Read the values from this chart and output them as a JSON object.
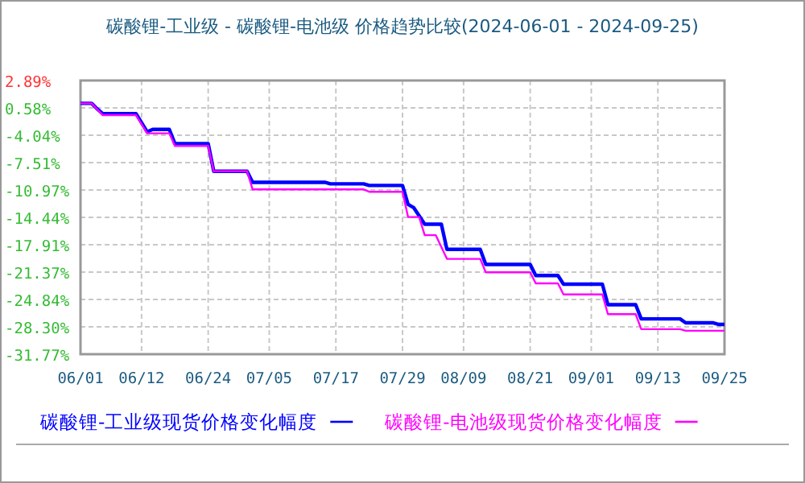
{
  "chart_data": {
    "type": "line",
    "title": "碳酸锂-工业级 - 碳酸锂-电池级 价格趋势比较(2024-06-01 - 2024-09-25)",
    "series": [
      {
        "name": "碳酸锂-工业级现货价格变化幅度",
        "color": "#0000ff",
        "x": [
          "2024-06-01",
          "2024-06-03",
          "2024-06-04",
          "2024-06-05",
          "2024-06-11",
          "2024-06-13",
          "2024-06-14",
          "2024-06-17",
          "2024-06-18",
          "2024-06-24",
          "2024-06-25",
          "2024-07-01",
          "2024-07-02",
          "2024-07-15",
          "2024-07-16",
          "2024-07-22",
          "2024-07-23",
          "2024-07-29",
          "2024-07-30",
          "2024-07-31",
          "2024-08-02",
          "2024-08-05",
          "2024-08-06",
          "2024-08-12",
          "2024-08-13",
          "2024-08-21",
          "2024-08-22",
          "2024-08-26",
          "2024-08-27",
          "2024-09-03",
          "2024-09-04",
          "2024-09-09",
          "2024-09-10",
          "2024-09-17",
          "2024-09-18",
          "2024-09-23",
          "2024-09-24",
          "2024-09-25"
        ],
        "values": [
          0,
          0,
          -0.7,
          -1.3,
          -1.3,
          -3.6,
          -3.3,
          -3.3,
          -5.1,
          -5.1,
          -8.6,
          -8.6,
          -10.0,
          -10.0,
          -10.2,
          -10.2,
          -10.4,
          -10.4,
          -12.8,
          -13.2,
          -15.3,
          -15.3,
          -18.5,
          -18.5,
          -20.4,
          -20.4,
          -21.8,
          -21.8,
          -22.9,
          -22.9,
          -25.5,
          -25.5,
          -27.3,
          -27.3,
          -27.8,
          -27.8,
          -28.0,
          -28.0
        ]
      },
      {
        "name": "碳酸锂-电池级现货价格变化幅度",
        "color": "#ff00ff",
        "x": [
          "2024-06-01",
          "2024-06-03",
          "2024-06-05",
          "2024-06-11",
          "2024-06-13",
          "2024-06-17",
          "2024-06-18",
          "2024-06-24",
          "2024-06-25",
          "2024-07-01",
          "2024-07-02",
          "2024-07-22",
          "2024-07-23",
          "2024-07-29",
          "2024-07-30",
          "2024-08-01",
          "2024-08-02",
          "2024-08-04",
          "2024-08-06",
          "2024-08-12",
          "2024-08-13",
          "2024-08-21",
          "2024-08-22",
          "2024-08-26",
          "2024-08-27",
          "2024-09-03",
          "2024-09-04",
          "2024-09-09",
          "2024-09-10",
          "2024-09-17",
          "2024-09-18",
          "2024-09-25"
        ],
        "values": [
          0,
          0,
          -1.5,
          -1.5,
          -3.8,
          -3.8,
          -5.4,
          -5.4,
          -8.6,
          -8.6,
          -10.9,
          -10.9,
          -11.2,
          -11.2,
          -14.4,
          -14.4,
          -16.7,
          -16.7,
          -19.7,
          -19.7,
          -21.4,
          -21.4,
          -22.8,
          -22.8,
          -24.2,
          -24.2,
          -26.7,
          -26.7,
          -28.6,
          -28.6,
          -28.8,
          -28.8
        ]
      }
    ],
    "xlim": [
      "2024-06-01",
      "2024-09-25"
    ],
    "xticks": [
      {
        "value": "2024-06-01",
        "label": "06/01"
      },
      {
        "value": "2024-06-12",
        "label": "06/12"
      },
      {
        "value": "2024-06-24",
        "label": "06/24"
      },
      {
        "value": "2024-07-05",
        "label": "07/05"
      },
      {
        "value": "2024-07-17",
        "label": "07/17"
      },
      {
        "value": "2024-07-29",
        "label": "07/29"
      },
      {
        "value": "2024-08-09",
        "label": "08/09"
      },
      {
        "value": "2024-08-21",
        "label": "08/21"
      },
      {
        "value": "2024-09-01",
        "label": "09/01"
      },
      {
        "value": "2024-09-13",
        "label": "09/13"
      },
      {
        "value": "2024-09-25",
        "label": "09/25"
      }
    ],
    "ylim": [
      -31.77,
      2.89
    ],
    "yticks": [
      {
        "value": 2.89,
        "label": "2.89%"
      },
      {
        "value": -0.58,
        "label": "0.58%"
      },
      {
        "value": -4.04,
        "label": "-4.04%"
      },
      {
        "value": -7.51,
        "label": "-7.51%"
      },
      {
        "value": -10.97,
        "label": "-10.97%"
      },
      {
        "value": -14.44,
        "label": "-14.44%"
      },
      {
        "value": -17.91,
        "label": "-17.91%"
      },
      {
        "value": -21.37,
        "label": "-21.37%"
      },
      {
        "value": -24.84,
        "label": "-24.84%"
      },
      {
        "value": -28.3,
        "label": "-28.30%"
      },
      {
        "value": -31.77,
        "label": "-31.77%"
      }
    ],
    "grid": true,
    "legend": "bottom",
    "line_style": "solid"
  }
}
